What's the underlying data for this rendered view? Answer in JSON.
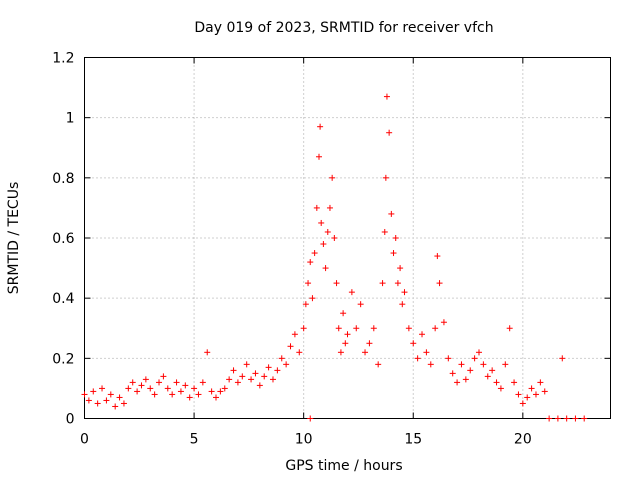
{
  "chart_data": {
    "type": "scatter",
    "title": "Day 019 of 2023, SRMTID for receiver vfch",
    "xlabel": "GPS time / hours",
    "ylabel": "SRMTID / TECUs",
    "xlim": [
      0,
      24
    ],
    "ylim": [
      0,
      1.2
    ],
    "xticks": [
      0,
      5,
      10,
      15,
      20
    ],
    "xtick_labels": [
      "0",
      "5",
      "10",
      "15",
      "20"
    ],
    "yticks": [
      0,
      0.2,
      0.4,
      0.6,
      0.8,
      1,
      1.2
    ],
    "ytick_labels": [
      "0",
      "0.2",
      "0.4",
      "0.6",
      "0.8",
      "1",
      "1.2"
    ],
    "grid": true,
    "marker": "+",
    "color": "#ff0000",
    "series": [
      {
        "name": "SRMTID",
        "points": [
          [
            0.0,
            0.08
          ],
          [
            0.2,
            0.06
          ],
          [
            0.4,
            0.09
          ],
          [
            0.6,
            0.05
          ],
          [
            0.8,
            0.1
          ],
          [
            1.0,
            0.06
          ],
          [
            1.2,
            0.08
          ],
          [
            1.4,
            0.04
          ],
          [
            1.6,
            0.07
          ],
          [
            1.8,
            0.05
          ],
          [
            2.0,
            0.1
          ],
          [
            2.2,
            0.12
          ],
          [
            2.4,
            0.09
          ],
          [
            2.6,
            0.11
          ],
          [
            2.8,
            0.13
          ],
          [
            3.0,
            0.1
          ],
          [
            3.2,
            0.08
          ],
          [
            3.4,
            0.12
          ],
          [
            3.6,
            0.14
          ],
          [
            3.8,
            0.1
          ],
          [
            4.0,
            0.08
          ],
          [
            4.2,
            0.12
          ],
          [
            4.4,
            0.09
          ],
          [
            4.6,
            0.11
          ],
          [
            4.8,
            0.07
          ],
          [
            5.0,
            0.1
          ],
          [
            5.2,
            0.08
          ],
          [
            5.4,
            0.12
          ],
          [
            5.6,
            0.22
          ],
          [
            5.8,
            0.09
          ],
          [
            6.0,
            0.07
          ],
          [
            6.2,
            0.09
          ],
          [
            6.4,
            0.1
          ],
          [
            6.6,
            0.13
          ],
          [
            6.8,
            0.16
          ],
          [
            7.0,
            0.12
          ],
          [
            7.2,
            0.14
          ],
          [
            7.4,
            0.18
          ],
          [
            7.6,
            0.13
          ],
          [
            7.8,
            0.15
          ],
          [
            8.0,
            0.11
          ],
          [
            8.2,
            0.14
          ],
          [
            8.4,
            0.17
          ],
          [
            8.6,
            0.13
          ],
          [
            8.8,
            0.16
          ],
          [
            9.0,
            0.2
          ],
          [
            9.2,
            0.18
          ],
          [
            9.4,
            0.24
          ],
          [
            9.6,
            0.28
          ],
          [
            9.8,
            0.22
          ],
          [
            10.0,
            0.3
          ],
          [
            10.1,
            0.38
          ],
          [
            10.2,
            0.45
          ],
          [
            10.3,
            0.52
          ],
          [
            10.4,
            0.4
          ],
          [
            10.5,
            0.55
          ],
          [
            10.6,
            0.7
          ],
          [
            10.7,
            0.87
          ],
          [
            10.75,
            0.97
          ],
          [
            10.8,
            0.65
          ],
          [
            10.9,
            0.58
          ],
          [
            11.0,
            0.5
          ],
          [
            11.1,
            0.62
          ],
          [
            11.2,
            0.7
          ],
          [
            11.3,
            0.8
          ],
          [
            11.4,
            0.6
          ],
          [
            11.5,
            0.45
          ],
          [
            11.6,
            0.3
          ],
          [
            11.7,
            0.22
          ],
          [
            11.8,
            0.35
          ],
          [
            11.9,
            0.25
          ],
          [
            12.0,
            0.28
          ],
          [
            12.2,
            0.42
          ],
          [
            12.4,
            0.3
          ],
          [
            12.6,
            0.38
          ],
          [
            12.8,
            0.22
          ],
          [
            13.0,
            0.25
          ],
          [
            13.2,
            0.3
          ],
          [
            13.4,
            0.18
          ],
          [
            13.6,
            0.45
          ],
          [
            13.7,
            0.62
          ],
          [
            13.75,
            0.8
          ],
          [
            13.8,
            1.07
          ],
          [
            13.9,
            0.95
          ],
          [
            14.0,
            0.68
          ],
          [
            14.1,
            0.55
          ],
          [
            14.2,
            0.6
          ],
          [
            14.3,
            0.45
          ],
          [
            14.4,
            0.5
          ],
          [
            14.5,
            0.38
          ],
          [
            14.6,
            0.42
          ],
          [
            14.8,
            0.3
          ],
          [
            15.0,
            0.25
          ],
          [
            15.2,
            0.2
          ],
          [
            15.4,
            0.28
          ],
          [
            15.6,
            0.22
          ],
          [
            15.8,
            0.18
          ],
          [
            16.0,
            0.3
          ],
          [
            16.1,
            0.54
          ],
          [
            16.2,
            0.45
          ],
          [
            16.4,
            0.32
          ],
          [
            16.6,
            0.2
          ],
          [
            16.8,
            0.15
          ],
          [
            17.0,
            0.12
          ],
          [
            17.2,
            0.18
          ],
          [
            17.4,
            0.13
          ],
          [
            17.6,
            0.16
          ],
          [
            17.8,
            0.2
          ],
          [
            18.0,
            0.22
          ],
          [
            18.2,
            0.18
          ],
          [
            18.4,
            0.14
          ],
          [
            18.6,
            0.16
          ],
          [
            18.8,
            0.12
          ],
          [
            19.0,
            0.1
          ],
          [
            19.2,
            0.18
          ],
          [
            19.4,
            0.3
          ],
          [
            19.6,
            0.12
          ],
          [
            19.8,
            0.08
          ],
          [
            20.0,
            0.05
          ],
          [
            20.2,
            0.07
          ],
          [
            20.4,
            0.1
          ],
          [
            20.6,
            0.08
          ],
          [
            20.8,
            0.12
          ],
          [
            21.0,
            0.09
          ],
          [
            10.3,
            0.0
          ],
          [
            21.2,
            0.0
          ],
          [
            21.6,
            0.0
          ],
          [
            21.8,
            0.2
          ],
          [
            22.0,
            0.0
          ],
          [
            22.4,
            0.0
          ],
          [
            22.8,
            0.0
          ]
        ]
      }
    ]
  }
}
